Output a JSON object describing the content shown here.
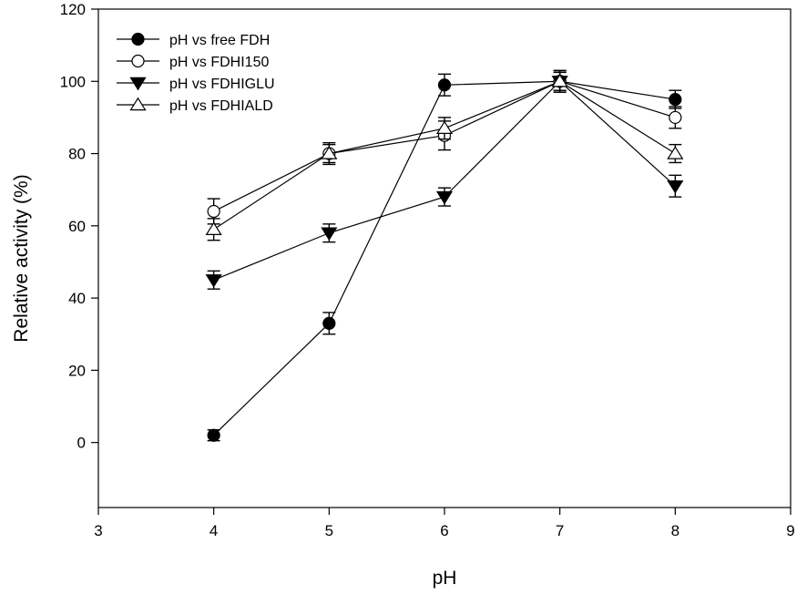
{
  "chart_data": {
    "type": "line",
    "xlabel": "pH",
    "ylabel": "Relative activity (%)",
    "xlim": [
      3,
      9
    ],
    "ylim": [
      -18,
      120
    ],
    "xticks": [
      3,
      4,
      5,
      6,
      7,
      8,
      9
    ],
    "yticks": [
      0,
      20,
      40,
      60,
      80,
      100,
      120
    ],
    "x": [
      4,
      5,
      6,
      7,
      8
    ],
    "grid": false,
    "legend_position": "top-left",
    "series": [
      {
        "name": "pH vs free FDH",
        "marker": "filled-circle",
        "values": [
          2,
          33,
          99,
          100,
          95
        ],
        "errors": [
          1.5,
          3,
          3,
          3,
          2.5
        ]
      },
      {
        "name": "pH vs FDHI150",
        "marker": "open-circle",
        "values": [
          64,
          80,
          85,
          100,
          90
        ],
        "errors": [
          3.5,
          2.5,
          4,
          2.5,
          3
        ]
      },
      {
        "name": "pH vs FDHIGLU",
        "marker": "filled-triangle-down",
        "values": [
          45,
          58,
          68,
          100,
          71
        ],
        "errors": [
          2.5,
          2.5,
          2.5,
          2.5,
          3
        ]
      },
      {
        "name": "pH vs FDHIALD",
        "marker": "open-triangle-up",
        "values": [
          59,
          80,
          87,
          100,
          80
        ],
        "errors": [
          3,
          3,
          3,
          3,
          2.5
        ]
      }
    ]
  }
}
